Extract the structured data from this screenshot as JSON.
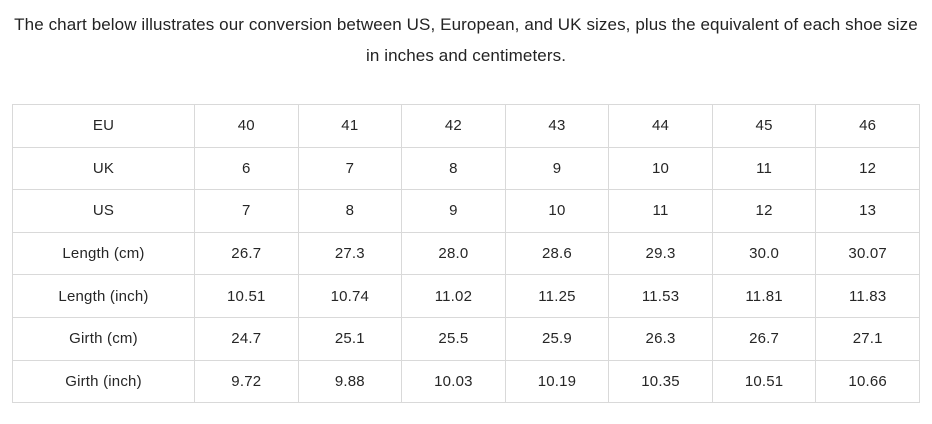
{
  "heading": {
    "text": "The chart below illustrates our conversion between US, European, and UK sizes, plus the equivalent of each shoe size in inches and centimeters."
  },
  "colors": {
    "background": "#ffffff",
    "text": "#262626",
    "heading_text": "#232323",
    "table_border": "#d9d9d9"
  },
  "chart_data": {
    "type": "table",
    "title": "Shoe size conversion chart (US, European, UK sizes with inch and centimeter equivalents)",
    "rows": [
      {
        "label": "EU",
        "values": [
          "40",
          "41",
          "42",
          "43",
          "44",
          "45",
          "46"
        ]
      },
      {
        "label": "UK",
        "values": [
          "6",
          "7",
          "8",
          "9",
          "10",
          "11",
          "12"
        ]
      },
      {
        "label": "US",
        "values": [
          "7",
          "8",
          "9",
          "10",
          "11",
          "12",
          "13"
        ]
      },
      {
        "label": "Length (cm)",
        "values": [
          "26.7",
          "27.3",
          "28.0",
          "28.6",
          "29.3",
          "30.0",
          "30.07"
        ]
      },
      {
        "label": "Length (inch)",
        "values": [
          "10.51",
          "10.74",
          "11.02",
          "11.25",
          "11.53",
          "11.81",
          "11.83"
        ]
      },
      {
        "label": "Girth (cm)",
        "values": [
          "24.7",
          "25.1",
          "25.5",
          "25.9",
          "26.3",
          "26.7",
          "27.1"
        ]
      },
      {
        "label": "Girth (inch)",
        "values": [
          "9.72",
          "9.88",
          "10.03",
          "10.19",
          "10.35",
          "10.51",
          "10.66"
        ]
      }
    ]
  }
}
